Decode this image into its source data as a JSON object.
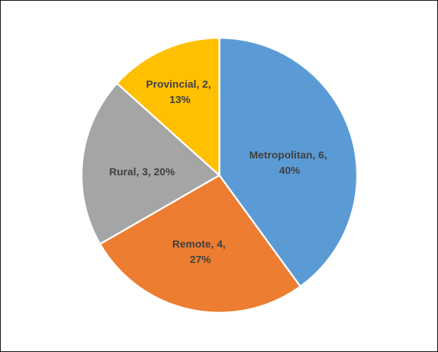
{
  "chart_data": {
    "type": "pie",
    "title": "",
    "categories": [
      "Metropolitan",
      "Remote",
      "Rural",
      "Provincial"
    ],
    "values": [
      6,
      4,
      3,
      2
    ],
    "percentages": [
      "40%",
      "27%",
      "20%",
      "13%"
    ],
    "colors": [
      "#5b9bd5",
      "#ed7d31",
      "#a5a5a5",
      "#ffc000"
    ],
    "labels": [
      {
        "line1": "Metropolitan, 6,",
        "line2": "40%"
      },
      {
        "line1": "Remote, 4,",
        "line2": "27%"
      },
      {
        "line1": "Rural, 3, 20%",
        "line2": ""
      },
      {
        "line1": "Provincial, 2,",
        "line2": "13%"
      }
    ],
    "start_angle": "12 o'clock",
    "direction": "clockwise",
    "legend": "none"
  }
}
